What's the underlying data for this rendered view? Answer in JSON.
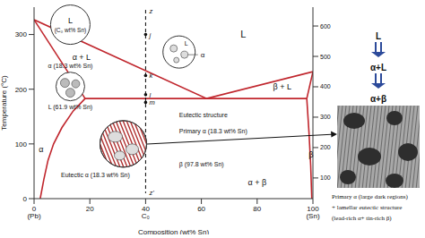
{
  "chart_data": {
    "type": "line",
    "x_label": "Composition (wt% Sn)",
    "y_label": "Temperature (°C)",
    "xlim": [
      0,
      100
    ],
    "xticks": [
      0,
      20,
      40,
      60,
      80,
      100
    ],
    "ylim": [
      0,
      350
    ],
    "yticks": [
      0,
      100,
      200,
      300
    ],
    "y2lim": [
      32,
      662
    ],
    "y2ticks": [
      100,
      200,
      300,
      400,
      500,
      600
    ],
    "series": [
      {
        "x": [
          0,
          61.9,
          100
        ],
        "values": [
          327,
          183,
          232
        ],
        "color": "#c0262d",
        "line_style": "solid"
      },
      {
        "x": [
          0,
          18.3
        ],
        "values": [
          327,
          183
        ],
        "color": "#c0262d",
        "line_style": "solid"
      },
      {
        "x": [
          18.3,
          97.8
        ],
        "values": [
          183,
          183
        ],
        "color": "#c0262d",
        "line_style": "solid"
      },
      {
        "x": [
          18.3,
          14,
          10,
          7,
          5,
          3.5,
          2.2
        ],
        "values": [
          183,
          160,
          130,
          100,
          70,
          35,
          0
        ],
        "color": "#c0262d",
        "line_style": "solid"
      },
      {
        "x": [
          97.8,
          98.6,
          99.2,
          99.6
        ],
        "values": [
          183,
          120,
          60,
          0
        ],
        "color": "#c0262d",
        "line_style": "solid"
      },
      {
        "x": [
          100,
          97.8
        ],
        "values": [
          232,
          183
        ],
        "color": "#c0262d",
        "line_style": "solid"
      },
      {
        "x": [
          40,
          40
        ],
        "values": [
          345,
          10
        ],
        "color": "#000000",
        "line_style": "dashed"
      }
    ],
    "points": {
      "labels": [
        "j",
        "k",
        "l",
        "m"
      ],
      "x": [
        40,
        40,
        40,
        40
      ],
      "values": [
        300,
        225,
        190,
        176
      ]
    },
    "line_labels": [
      "z",
      "z'"
    ],
    "x_sublabels": [
      "(Pb)",
      "C₀",
      "(Sn)"
    ],
    "regions": [
      "L",
      "α + L",
      "β + L",
      "α + β",
      "α",
      "β"
    ],
    "microstructures": [
      {
        "texts": [
          "L",
          "(C₀ wt% Sn)"
        ]
      },
      {
        "texts": [
          "L",
          "α"
        ]
      },
      {
        "texts": [
          "α (18.3 wt% Sn)",
          "L (61.9 wt% Sn)"
        ]
      },
      {
        "texts": [
          "Eutectic structure",
          "Primary α (18.3 wt% Sn)",
          "Eutectic α (18.3 wt% Sn)",
          "β (97.8 wt% Sn)"
        ]
      }
    ]
  },
  "sequence": [
    "L",
    "α+L",
    "α+β"
  ],
  "micrograph_caption": [
    "Primary α (large dark regions)",
    "+ lamellar eutectic structure",
    "(lead-rich α+ tin-rich β)"
  ]
}
